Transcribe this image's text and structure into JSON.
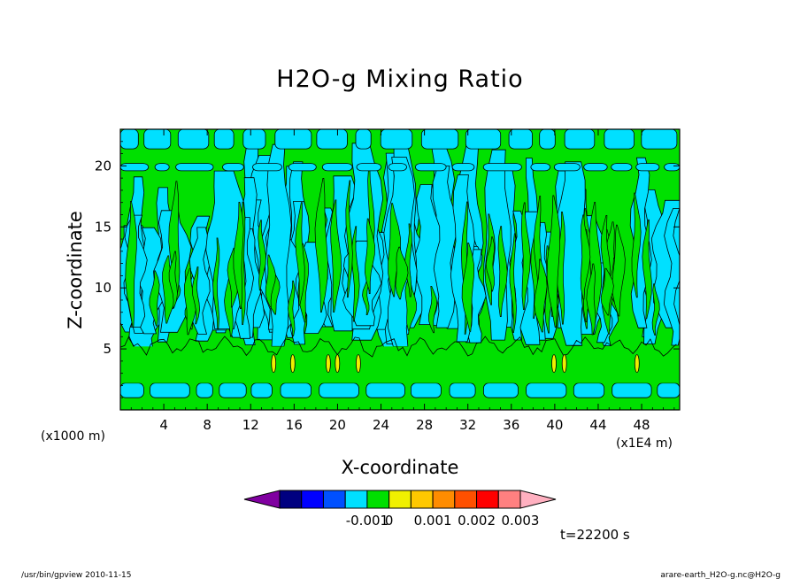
{
  "chart_data": {
    "type": "heatmap",
    "title": "H2O-g Mixing Ratio",
    "xlabel": "X-coordinate",
    "ylabel": "Z-coordinate",
    "x_unit_left": "(x1000 m)",
    "x_unit_right": "(x1E4 m)",
    "xlim": [
      0,
      51.5
    ],
    "ylim": [
      0,
      23
    ],
    "x_ticks": [
      4,
      8,
      12,
      16,
      20,
      24,
      28,
      32,
      36,
      40,
      44,
      48
    ],
    "y_ticks": [
      5,
      10,
      15,
      20
    ],
    "time_label": "t=22200 s",
    "colorbar": {
      "levels": [
        -0.004,
        -0.003,
        -0.002,
        -0.001,
        0,
        0.0005,
        0.001,
        0.0015,
        0.002,
        0.0025,
        0.003
      ],
      "colors": [
        "#8000a0",
        "#000080",
        "#0000ff",
        "#0050ff",
        "#00e0ff",
        "#00e000",
        "#f0f000",
        "#ffc800",
        "#ff8c00",
        "#ff5000",
        "#ff0000",
        "#ff8080",
        "#ffb0c0"
      ],
      "tick_labels": [
        {
          "text": "-0.001",
          "value": -0.001
        },
        {
          "text": "0",
          "value": 0
        },
        {
          "text": "0.001",
          "value": 0.001
        },
        {
          "text": "0.002",
          "value": 0.002
        },
        {
          "text": "0.003",
          "value": 0.003
        }
      ]
    },
    "field_colors": {
      "positive": "#00e000",
      "negative": "#00e0ff",
      "high": "#f0f000",
      "contour": "#000000"
    },
    "bands": [
      {
        "z_min": 0,
        "z_max": 0.6,
        "state": "positive"
      },
      {
        "z_min": 1.0,
        "z_max": 2.2,
        "state": "negative"
      },
      {
        "z_min": 2.2,
        "z_max": 5.2,
        "state": "positive"
      },
      {
        "z_min": 19.6,
        "z_max": 20.2,
        "state": "negative"
      },
      {
        "z_min": 21.4,
        "z_max": 23,
        "state": "negative"
      }
    ]
  },
  "footer": {
    "left": "/usr/bin/gpview   2010-11-15",
    "right": "arare-earth_H2O-g.nc@H2O-g"
  }
}
